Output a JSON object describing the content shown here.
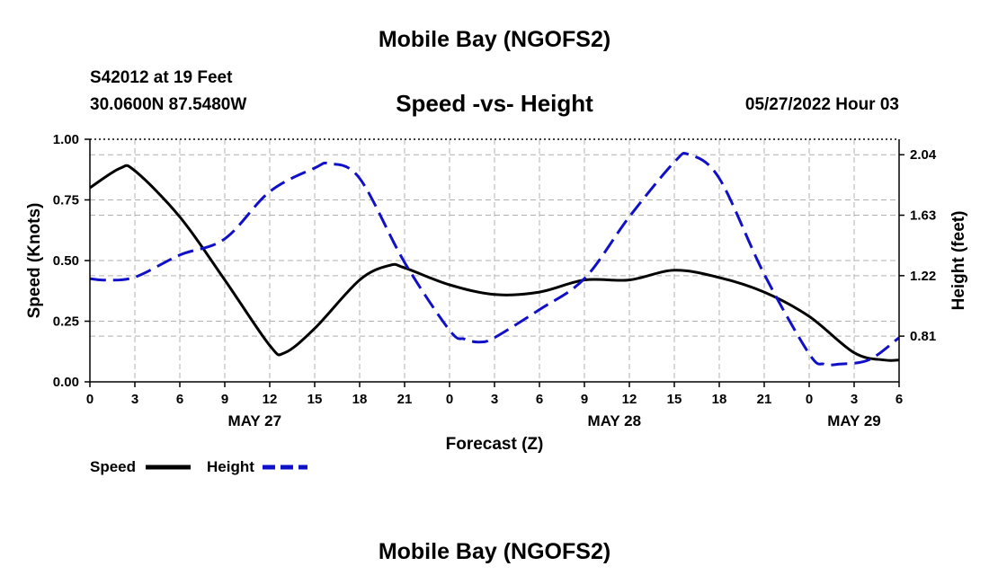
{
  "header": {
    "title": "Mobile Bay (NGOFS2)",
    "station": "S42012 at 19 Feet",
    "coords": "30.0600N  87.5480W",
    "subtitle": "Speed -vs- Height",
    "datetime": "05/27/2022 Hour 03"
  },
  "footer": {
    "title": "Mobile Bay (NGOFS2)"
  },
  "chart_data": {
    "type": "line",
    "xlabel": "Forecast (Z)",
    "ylabel_left": "Speed (Knots)",
    "ylabel_right": "Height (feet)",
    "x_hours_range": [
      0,
      54
    ],
    "x_tick_hours": [
      0,
      3,
      6,
      9,
      12,
      15,
      18,
      21,
      24,
      27,
      30,
      33,
      36,
      39,
      42,
      45,
      48,
      51,
      54
    ],
    "x_tick_labels": [
      "0",
      "3",
      "6",
      "9",
      "12",
      "15",
      "18",
      "21",
      "0",
      "3",
      "6",
      "9",
      "12",
      "15",
      "18",
      "21",
      "0",
      "3",
      "6"
    ],
    "date_labels": [
      {
        "hour": 11,
        "label": "MAY 27"
      },
      {
        "hour": 35,
        "label": "MAY 28"
      },
      {
        "hour": 51,
        "label": "MAY 29"
      }
    ],
    "ylim_left": [
      0,
      1
    ],
    "y_ticks_left": [
      0,
      0.25,
      0.5,
      0.75,
      1.0
    ],
    "y_tick_labels_left": [
      "0.00",
      "0.25",
      "0.50",
      "0.75",
      "1.00"
    ],
    "ylim_right": [
      0.5,
      2.145
    ],
    "y_ticks_right": [
      0.81,
      1.22,
      1.63,
      2.04
    ],
    "y_tick_labels_right": [
      "0.81",
      "1.22",
      "1.63",
      "2.04"
    ],
    "grid": true,
    "series": [
      {
        "name": "Speed",
        "axis": "left",
        "color": "#000000",
        "dash": "solid",
        "x": [
          0,
          2,
          3,
          6,
          9,
          12,
          13,
          15,
          18,
          20,
          21,
          24,
          27,
          30,
          33,
          36,
          39,
          42,
          45,
          48,
          51,
          53,
          54
        ],
        "y": [
          0.8,
          0.88,
          0.87,
          0.68,
          0.42,
          0.15,
          0.12,
          0.22,
          0.42,
          0.48,
          0.47,
          0.4,
          0.36,
          0.37,
          0.42,
          0.42,
          0.46,
          0.43,
          0.37,
          0.27,
          0.12,
          0.09,
          0.09
        ]
      },
      {
        "name": "Height",
        "axis": "right",
        "color": "#1010c8",
        "dash": "dashed",
        "x": [
          0,
          1,
          3,
          6,
          9,
          12,
          15,
          16,
          18,
          21,
          24,
          25,
          26,
          27,
          30,
          33,
          36,
          39,
          40,
          42,
          45,
          48,
          49,
          50,
          52,
          54
        ],
        "y": [
          1.2,
          1.19,
          1.21,
          1.36,
          1.47,
          1.79,
          1.95,
          1.98,
          1.88,
          1.31,
          0.85,
          0.79,
          0.77,
          0.8,
          0.99,
          1.2,
          1.62,
          1.99,
          2.04,
          1.88,
          1.23,
          0.69,
          0.62,
          0.62,
          0.65,
          0.8
        ]
      }
    ]
  }
}
